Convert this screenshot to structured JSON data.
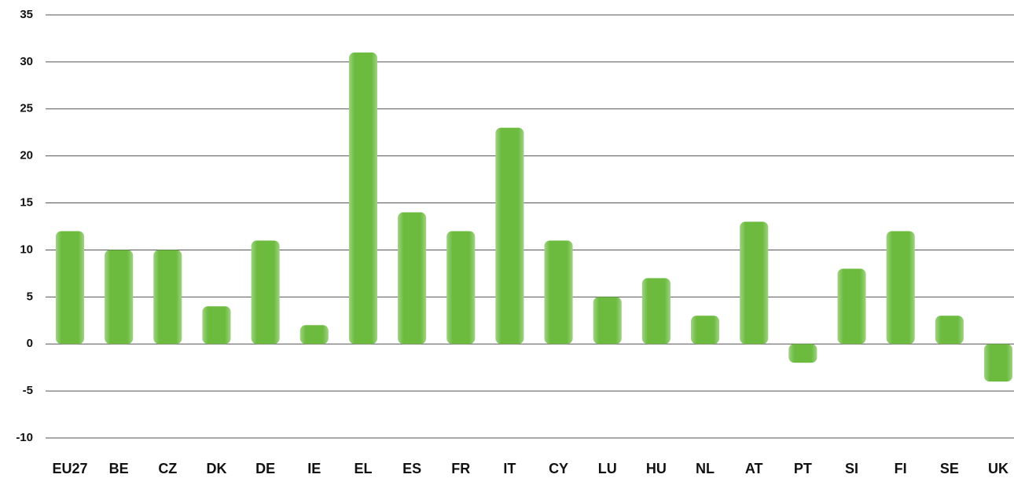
{
  "chart_data": {
    "type": "bar",
    "categories": [
      "EU27",
      "BE",
      "CZ",
      "DK",
      "DE",
      "IE",
      "EL",
      "ES",
      "FR",
      "IT",
      "CY",
      "LU",
      "HU",
      "NL",
      "AT",
      "PT",
      "SI",
      "FI",
      "SE",
      "UK"
    ],
    "values": [
      12,
      10,
      10,
      4,
      11,
      2,
      31,
      14,
      12,
      23,
      11,
      5,
      7,
      3,
      13,
      -2,
      8,
      12,
      3,
      -4
    ],
    "color": "#6cbb3f",
    "ylim": [
      -10,
      35
    ],
    "yticks": [
      -10,
      -5,
      0,
      5,
      10,
      15,
      20,
      25,
      30,
      35
    ],
    "grid": true
  }
}
